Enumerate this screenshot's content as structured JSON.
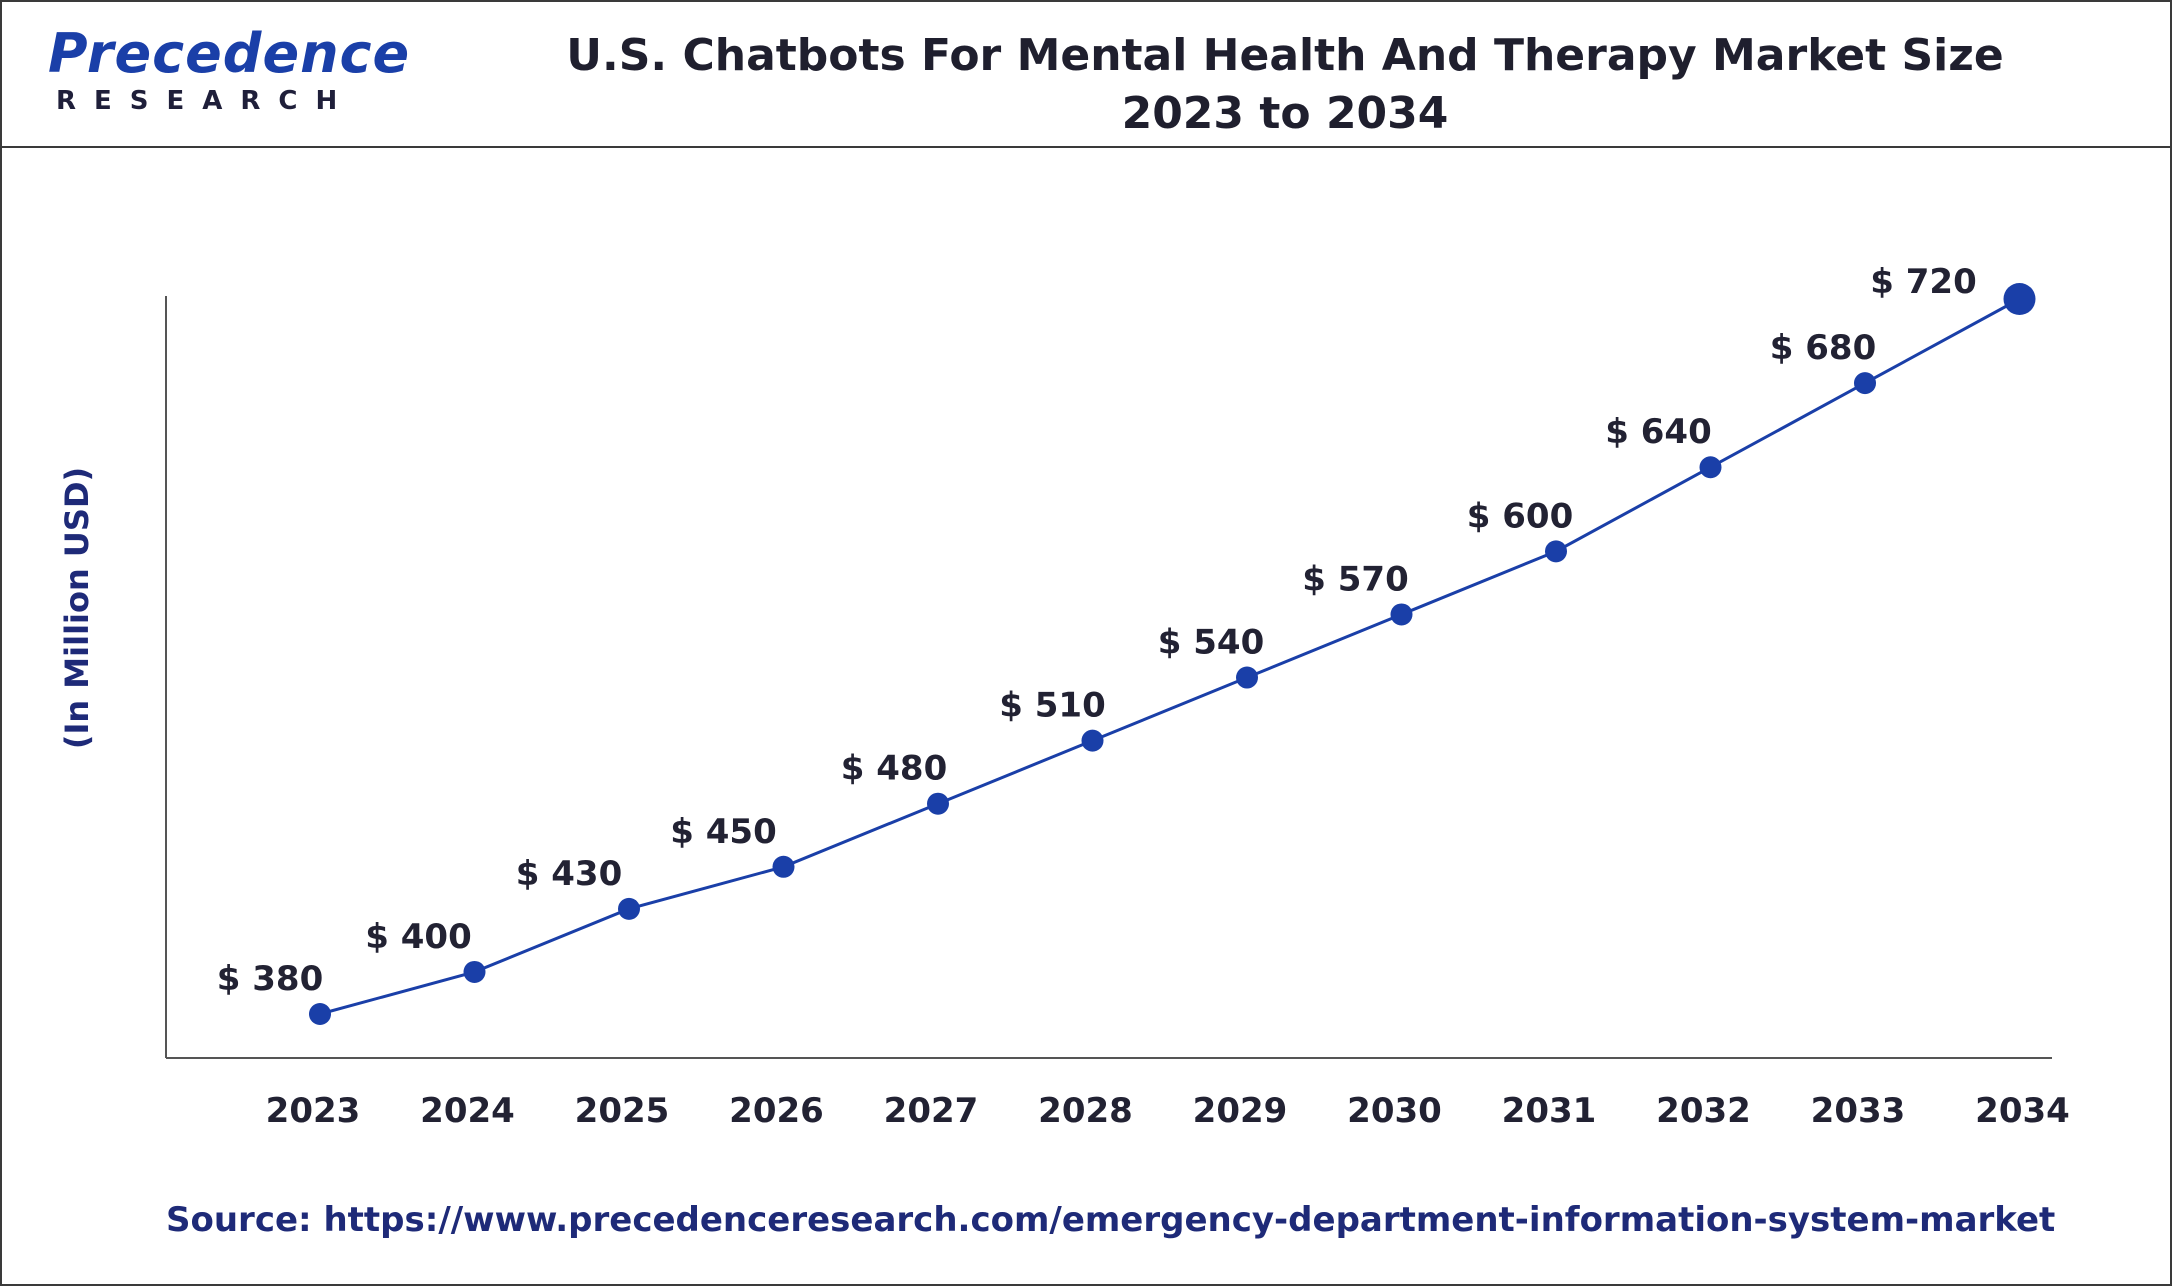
{
  "logo": {
    "word": "Precedence",
    "sub": "RESEARCH"
  },
  "title_line1": "U.S. Chatbots For Mental Health And Therapy Market Size",
  "title_line2": "2023 to 2034",
  "source_text": "Source: https://www.precedenceresearch.com/emergency-department-information-system-market",
  "colors": {
    "line": "#1a3fa8",
    "marker": "#1a3fa8",
    "axis": "#555555",
    "text": "#222233",
    "accent": "#1e2a78"
  },
  "chart_data": {
    "type": "line",
    "title": "U.S. Chatbots For Mental Health And Therapy Market Size 2023 to 2034",
    "xlabel": "",
    "ylabel": "(In Million USD)",
    "categories": [
      "2023",
      "2024",
      "2025",
      "2026",
      "2027",
      "2028",
      "2029",
      "2030",
      "2031",
      "2032",
      "2033",
      "2034"
    ],
    "values": [
      380,
      400,
      430,
      450,
      480,
      510,
      540,
      570,
      600,
      640,
      680,
      720
    ],
    "data_labels": [
      "$ 380",
      "$ 400",
      "$ 430",
      "$ 450",
      "$ 480",
      "$ 510",
      "$ 540",
      "$ 570",
      "$ 600",
      "$ 640",
      "$ 680",
      "$ 720"
    ],
    "grid": false,
    "legend": "none"
  }
}
